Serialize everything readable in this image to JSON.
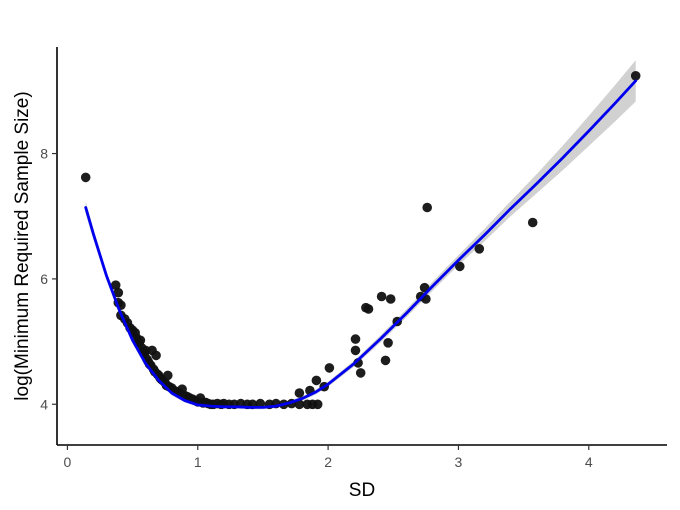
{
  "chart_data": {
    "type": "scatter",
    "title": "",
    "xlabel": "SD",
    "ylabel": "log(Minimum Required Sample Size)",
    "xlim": [
      -0.08,
      4.6
    ],
    "ylim": [
      3.35,
      9.7
    ],
    "xticks": [
      0,
      1,
      2,
      3,
      4
    ],
    "xtick_labels": [
      "0",
      "1",
      "2",
      "3",
      "4"
    ],
    "yticks": [
      4,
      6,
      8
    ],
    "ytick_labels": [
      "4",
      "6",
      "8"
    ],
    "grid": false,
    "legend": "none",
    "point_color": "#111111",
    "fit_color": "#0000ee",
    "ribbon_color": "#bdbdbd",
    "series": [
      {
        "values": [
          [
            0.14,
            7.62
          ],
          [
            0.37,
            5.9
          ],
          [
            0.39,
            5.78
          ],
          [
            0.39,
            5.62
          ],
          [
            0.41,
            5.58
          ],
          [
            0.41,
            5.42
          ],
          [
            0.44,
            5.36
          ],
          [
            0.46,
            5.3
          ],
          [
            0.48,
            5.22
          ],
          [
            0.5,
            5.18
          ],
          [
            0.52,
            5.14
          ],
          [
            0.53,
            5.06
          ],
          [
            0.54,
            5.0
          ],
          [
            0.55,
            4.98
          ],
          [
            0.56,
            5.02
          ],
          [
            0.57,
            4.9
          ],
          [
            0.58,
            4.84
          ],
          [
            0.59,
            4.8
          ],
          [
            0.6,
            4.86
          ],
          [
            0.61,
            4.72
          ],
          [
            0.62,
            4.68
          ],
          [
            0.63,
            4.64
          ],
          [
            0.64,
            4.62
          ],
          [
            0.65,
            4.86
          ],
          [
            0.66,
            4.56
          ],
          [
            0.67,
            4.52
          ],
          [
            0.68,
            4.78
          ],
          [
            0.69,
            4.48
          ],
          [
            0.7,
            4.46
          ],
          [
            0.71,
            4.42
          ],
          [
            0.72,
            4.4
          ],
          [
            0.73,
            4.38
          ],
          [
            0.75,
            4.34
          ],
          [
            0.76,
            4.3
          ],
          [
            0.77,
            4.46
          ],
          [
            0.78,
            4.28
          ],
          [
            0.8,
            4.26
          ],
          [
            0.82,
            4.22
          ],
          [
            0.84,
            4.2
          ],
          [
            0.86,
            4.18
          ],
          [
            0.88,
            4.24
          ],
          [
            0.9,
            4.14
          ],
          [
            0.92,
            4.12
          ],
          [
            0.94,
            4.1
          ],
          [
            0.96,
            4.08
          ],
          [
            0.98,
            4.06
          ],
          [
            1.0,
            4.04
          ],
          [
            1.02,
            4.1
          ],
          [
            1.04,
            4.02
          ],
          [
            1.06,
            4.03
          ],
          [
            1.08,
            4.01
          ],
          [
            1.1,
            4.0
          ],
          [
            1.12,
            4.0
          ],
          [
            1.15,
            4.01
          ],
          [
            1.18,
            4.0
          ],
          [
            1.2,
            4.01
          ],
          [
            1.24,
            4.0
          ],
          [
            1.28,
            4.0
          ],
          [
            1.33,
            4.01
          ],
          [
            1.38,
            4.0
          ],
          [
            1.42,
            4.0
          ],
          [
            1.48,
            4.01
          ],
          [
            1.55,
            4.0
          ],
          [
            1.6,
            4.01
          ],
          [
            1.66,
            4.0
          ],
          [
            1.72,
            4.01
          ],
          [
            1.78,
            4.0
          ],
          [
            1.84,
            4.0
          ],
          [
            1.88,
            4.0
          ],
          [
            1.92,
            4.0
          ],
          [
            1.78,
            4.18
          ],
          [
            1.86,
            4.22
          ],
          [
            1.91,
            4.38
          ],
          [
            1.97,
            4.28
          ],
          [
            2.01,
            4.58
          ],
          [
            2.21,
            5.04
          ],
          [
            2.21,
            4.86
          ],
          [
            2.23,
            4.66
          ],
          [
            2.25,
            4.5
          ],
          [
            2.29,
            5.54
          ],
          [
            2.31,
            5.52
          ],
          [
            2.41,
            5.72
          ],
          [
            2.44,
            4.7
          ],
          [
            2.46,
            4.98
          ],
          [
            2.48,
            5.68
          ],
          [
            2.53,
            5.32
          ],
          [
            2.71,
            5.72
          ],
          [
            2.74,
            5.86
          ],
          [
            2.75,
            5.68
          ],
          [
            2.76,
            7.14
          ],
          [
            3.01,
            6.2
          ],
          [
            3.16,
            6.48
          ],
          [
            3.57,
            6.9
          ],
          [
            4.36,
            9.24
          ]
        ]
      }
    ],
    "fit_curve": [
      [
        0.14,
        7.14
      ],
      [
        0.2,
        6.71
      ],
      [
        0.3,
        6.05
      ],
      [
        0.4,
        5.49
      ],
      [
        0.5,
        5.02
      ],
      [
        0.6,
        4.65
      ],
      [
        0.7,
        4.38
      ],
      [
        0.8,
        4.18
      ],
      [
        0.9,
        4.06
      ],
      [
        1.0,
        3.99
      ],
      [
        1.1,
        3.97
      ],
      [
        1.2,
        3.96
      ],
      [
        1.3,
        3.96
      ],
      [
        1.4,
        3.95
      ],
      [
        1.5,
        3.95
      ],
      [
        1.6,
        3.97
      ],
      [
        1.7,
        4.02
      ],
      [
        1.8,
        4.09
      ],
      [
        1.9,
        4.19
      ],
      [
        2.0,
        4.32
      ],
      [
        2.2,
        4.65
      ],
      [
        2.4,
        5.04
      ],
      [
        2.6,
        5.45
      ],
      [
        2.8,
        5.88
      ],
      [
        3.0,
        6.3
      ],
      [
        3.2,
        6.7
      ],
      [
        3.4,
        7.12
      ],
      [
        3.6,
        7.52
      ],
      [
        3.8,
        7.93
      ],
      [
        4.0,
        8.36
      ],
      [
        4.2,
        8.8
      ],
      [
        4.36,
        9.16
      ]
    ],
    "ribbon_halfwidth": [
      [
        0.14,
        0.1
      ],
      [
        0.3,
        0.07
      ],
      [
        0.6,
        0.04
      ],
      [
        1.0,
        0.03
      ],
      [
        1.5,
        0.03
      ],
      [
        2.0,
        0.04
      ],
      [
        2.5,
        0.06
      ],
      [
        3.0,
        0.08
      ],
      [
        3.5,
        0.13
      ],
      [
        4.0,
        0.24
      ],
      [
        4.36,
        0.33
      ]
    ]
  }
}
